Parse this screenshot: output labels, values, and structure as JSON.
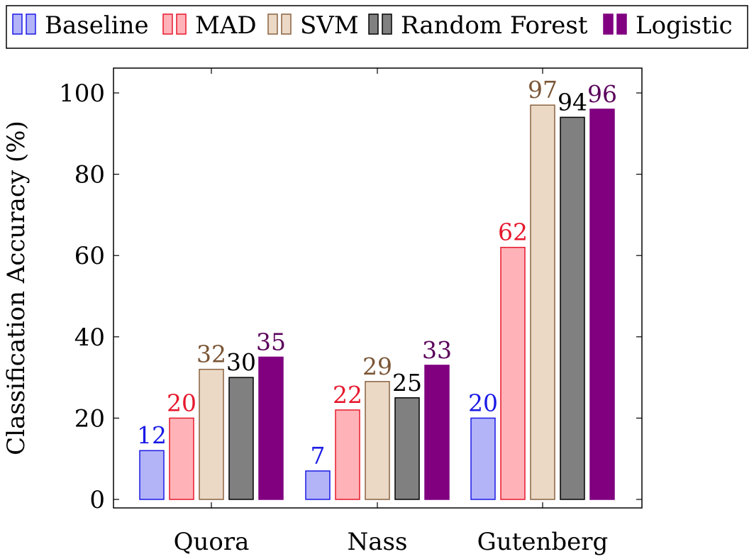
{
  "chart_data": {
    "type": "bar",
    "title": "",
    "xlabel": "",
    "ylabel": "Classification Accuracy (%)",
    "ylim": [
      0,
      106
    ],
    "yticks": [
      0,
      20,
      40,
      60,
      80,
      100
    ],
    "yticks_text": [
      "0",
      "20",
      "40",
      "60",
      "80",
      "100"
    ],
    "grid": false,
    "legend_position": "top",
    "categories": [
      "Quora",
      "Nass",
      "Gutenberg"
    ],
    "series": [
      {
        "name": "Baseline",
        "values": [
          12,
          7,
          20
        ],
        "labels": [
          "12",
          "7",
          "20"
        ],
        "fill": "#b3b3f8",
        "stroke": "#1a1ae6",
        "text_color": "#1a1ae6"
      },
      {
        "name": "MAD",
        "values": [
          20,
          22,
          62
        ],
        "labels": [
          "20",
          "22",
          "62"
        ],
        "fill": "#ffb3b8",
        "stroke": "#e6192d",
        "text_color": "#e6192d"
      },
      {
        "name": "SVM",
        "values": [
          32,
          29,
          97
        ],
        "labels": [
          "32",
          "29",
          "97"
        ],
        "fill": "#ebd9c6",
        "stroke": "#8a6240",
        "text_color": "#7a5535"
      },
      {
        "name": "Random Forest",
        "values": [
          30,
          25,
          94
        ],
        "labels": [
          "30",
          "25",
          "94"
        ],
        "fill": "#808080",
        "stroke": "#000000",
        "text_color": "#000000"
      },
      {
        "name": "Logistic",
        "values": [
          35,
          33,
          96
        ],
        "labels": [
          "35",
          "33",
          "96"
        ],
        "fill": "#800080",
        "stroke": "#800080",
        "text_color": "#5a005a"
      }
    ]
  }
}
